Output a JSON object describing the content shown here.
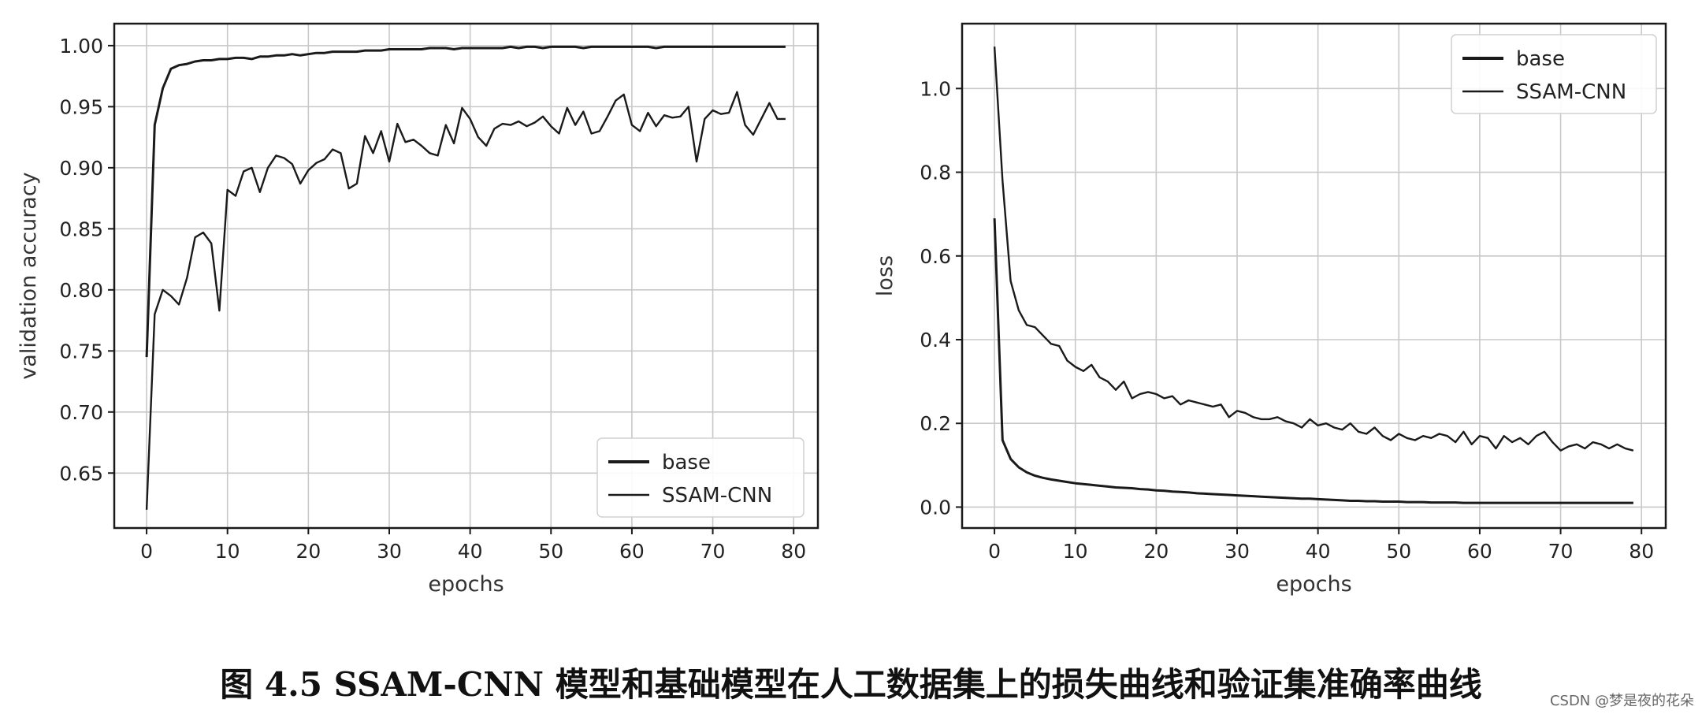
{
  "chart_data": [
    {
      "type": "line",
      "xlabel": "epochs",
      "ylabel": "validation accuracy",
      "xlim": [
        -4,
        83
      ],
      "ylim": [
        0.605,
        1.018
      ],
      "xticks": [
        "0",
        "10",
        "20",
        "30",
        "40",
        "50",
        "60",
        "70",
        "80"
      ],
      "yticks": [
        "0.65",
        "0.70",
        "0.75",
        "0.80",
        "0.85",
        "0.90",
        "0.95",
        "1.00"
      ],
      "grid": true,
      "legend_position": "lower-right",
      "series": [
        {
          "name": "base",
          "x": [
            0,
            1,
            2,
            3,
            4,
            5,
            6,
            7,
            8,
            9,
            10,
            11,
            12,
            13,
            14,
            15,
            16,
            17,
            18,
            19,
            20,
            21,
            22,
            23,
            24,
            25,
            26,
            27,
            28,
            29,
            30,
            31,
            32,
            33,
            34,
            35,
            36,
            37,
            38,
            39,
            40,
            41,
            42,
            43,
            44,
            45,
            46,
            47,
            48,
            49,
            50,
            51,
            52,
            53,
            54,
            55,
            56,
            57,
            58,
            59,
            60,
            61,
            62,
            63,
            64,
            65,
            66,
            67,
            68,
            69,
            70,
            71,
            72,
            73,
            74,
            75,
            76,
            77,
            78,
            79
          ],
          "y": [
            0.745,
            0.935,
            0.965,
            0.981,
            0.984,
            0.985,
            0.987,
            0.988,
            0.988,
            0.989,
            0.989,
            0.99,
            0.99,
            0.989,
            0.991,
            0.991,
            0.992,
            0.992,
            0.993,
            0.992,
            0.993,
            0.994,
            0.994,
            0.995,
            0.995,
            0.995,
            0.995,
            0.996,
            0.996,
            0.996,
            0.997,
            0.997,
            0.997,
            0.997,
            0.997,
            0.998,
            0.998,
            0.998,
            0.997,
            0.998,
            0.998,
            0.998,
            0.998,
            0.998,
            0.998,
            0.999,
            0.998,
            0.999,
            0.999,
            0.998,
            0.999,
            0.999,
            0.999,
            0.999,
            0.998,
            0.999,
            0.999,
            0.999,
            0.999,
            0.999,
            0.999,
            0.999,
            0.999,
            0.998,
            0.999,
            0.999,
            0.999,
            0.999,
            0.999,
            0.999,
            0.999,
            0.999,
            0.999,
            0.999,
            0.999,
            0.999,
            0.999,
            0.999,
            0.999,
            0.999
          ]
        },
        {
          "name": "SSAM-CNN",
          "x": [
            0,
            1,
            2,
            3,
            4,
            5,
            6,
            7,
            8,
            9,
            10,
            11,
            12,
            13,
            14,
            15,
            16,
            17,
            18,
            19,
            20,
            21,
            22,
            23,
            24,
            25,
            26,
            27,
            28,
            29,
            30,
            31,
            32,
            33,
            34,
            35,
            36,
            37,
            38,
            39,
            40,
            41,
            42,
            43,
            44,
            45,
            46,
            47,
            48,
            49,
            50,
            51,
            52,
            53,
            54,
            55,
            56,
            57,
            58,
            59,
            60,
            61,
            62,
            63,
            64,
            65,
            66,
            67,
            68,
            69,
            70,
            71,
            72,
            73,
            74,
            75,
            76,
            77,
            78,
            79
          ],
          "y": [
            0.62,
            0.78,
            0.8,
            0.795,
            0.788,
            0.81,
            0.843,
            0.847,
            0.838,
            0.783,
            0.882,
            0.877,
            0.897,
            0.9,
            0.88,
            0.9,
            0.91,
            0.908,
            0.903,
            0.887,
            0.898,
            0.904,
            0.907,
            0.915,
            0.912,
            0.883,
            0.887,
            0.926,
            0.912,
            0.93,
            0.905,
            0.936,
            0.921,
            0.923,
            0.918,
            0.912,
            0.91,
            0.935,
            0.92,
            0.949,
            0.94,
            0.925,
            0.918,
            0.932,
            0.936,
            0.935,
            0.938,
            0.934,
            0.937,
            0.942,
            0.934,
            0.928,
            0.949,
            0.935,
            0.946,
            0.928,
            0.93,
            0.942,
            0.955,
            0.96,
            0.935,
            0.93,
            0.945,
            0.934,
            0.943,
            0.941,
            0.942,
            0.95,
            0.905,
            0.94,
            0.947,
            0.944,
            0.945,
            0.962,
            0.935,
            0.927,
            0.94,
            0.953,
            0.94,
            0.94
          ]
        }
      ]
    },
    {
      "type": "line",
      "xlabel": "epochs",
      "ylabel": "loss",
      "xlim": [
        -4,
        83
      ],
      "ylim": [
        -0.05,
        1.155
      ],
      "xticks": [
        "0",
        "10",
        "20",
        "30",
        "40",
        "50",
        "60",
        "70",
        "80"
      ],
      "yticks": [
        "0.0",
        "0.2",
        "0.4",
        "0.6",
        "0.8",
        "1.0"
      ],
      "grid": true,
      "legend_position": "upper-right",
      "series": [
        {
          "name": "base",
          "x": [
            0,
            1,
            2,
            3,
            4,
            5,
            6,
            7,
            8,
            9,
            10,
            11,
            12,
            13,
            14,
            15,
            16,
            17,
            18,
            19,
            20,
            21,
            22,
            23,
            24,
            25,
            26,
            27,
            28,
            29,
            30,
            31,
            32,
            33,
            34,
            35,
            36,
            37,
            38,
            39,
            40,
            41,
            42,
            43,
            44,
            45,
            46,
            47,
            48,
            49,
            50,
            51,
            52,
            53,
            54,
            55,
            56,
            57,
            58,
            59,
            60,
            61,
            62,
            63,
            64,
            65,
            66,
            67,
            68,
            69,
            70,
            71,
            72,
            73,
            74,
            75,
            76,
            77,
            78,
            79
          ],
          "y": [
            0.69,
            0.16,
            0.115,
            0.095,
            0.083,
            0.075,
            0.07,
            0.066,
            0.063,
            0.06,
            0.057,
            0.055,
            0.053,
            0.051,
            0.049,
            0.047,
            0.046,
            0.045,
            0.043,
            0.042,
            0.04,
            0.039,
            0.037,
            0.036,
            0.035,
            0.033,
            0.032,
            0.031,
            0.03,
            0.029,
            0.028,
            0.027,
            0.026,
            0.025,
            0.024,
            0.023,
            0.022,
            0.021,
            0.02,
            0.02,
            0.019,
            0.018,
            0.017,
            0.016,
            0.015,
            0.015,
            0.014,
            0.014,
            0.013,
            0.013,
            0.013,
            0.012,
            0.012,
            0.012,
            0.011,
            0.011,
            0.011,
            0.011,
            0.01,
            0.01,
            0.01,
            0.01,
            0.01,
            0.01,
            0.01,
            0.01,
            0.01,
            0.01,
            0.01,
            0.01,
            0.01,
            0.01,
            0.01,
            0.01,
            0.01,
            0.01,
            0.01,
            0.01,
            0.01,
            0.01
          ]
        },
        {
          "name": "SSAM-CNN",
          "x": [
            0,
            1,
            2,
            3,
            4,
            5,
            6,
            7,
            8,
            9,
            10,
            11,
            12,
            13,
            14,
            15,
            16,
            17,
            18,
            19,
            20,
            21,
            22,
            23,
            24,
            25,
            26,
            27,
            28,
            29,
            30,
            31,
            32,
            33,
            34,
            35,
            36,
            37,
            38,
            39,
            40,
            41,
            42,
            43,
            44,
            45,
            46,
            47,
            48,
            49,
            50,
            51,
            52,
            53,
            54,
            55,
            56,
            57,
            58,
            59,
            60,
            61,
            62,
            63,
            64,
            65,
            66,
            67,
            68,
            69,
            70,
            71,
            72,
            73,
            74,
            75,
            76,
            77,
            78,
            79
          ],
          "y": [
            1.1,
            0.78,
            0.54,
            0.47,
            0.435,
            0.43,
            0.41,
            0.39,
            0.385,
            0.35,
            0.335,
            0.325,
            0.34,
            0.31,
            0.3,
            0.28,
            0.3,
            0.26,
            0.27,
            0.275,
            0.27,
            0.26,
            0.265,
            0.245,
            0.255,
            0.25,
            0.245,
            0.24,
            0.245,
            0.215,
            0.23,
            0.225,
            0.215,
            0.21,
            0.21,
            0.215,
            0.205,
            0.2,
            0.19,
            0.21,
            0.195,
            0.2,
            0.19,
            0.185,
            0.2,
            0.18,
            0.175,
            0.19,
            0.17,
            0.16,
            0.175,
            0.165,
            0.16,
            0.17,
            0.165,
            0.175,
            0.17,
            0.155,
            0.18,
            0.15,
            0.17,
            0.165,
            0.14,
            0.17,
            0.155,
            0.165,
            0.15,
            0.17,
            0.18,
            0.155,
            0.135,
            0.145,
            0.15,
            0.14,
            0.155,
            0.15,
            0.14,
            0.15,
            0.14,
            0.135
          ]
        }
      ]
    }
  ],
  "caption": "图 4.5   SSAM-CNN 模型和基础模型在人工数据集上的损失曲线和验证集准确率曲线",
  "watermark": "CSDN @梦是夜的花朵",
  "colors": {
    "line": "#1a1a1a",
    "grid": "#c8c8c8",
    "background": "#ffffff"
  }
}
